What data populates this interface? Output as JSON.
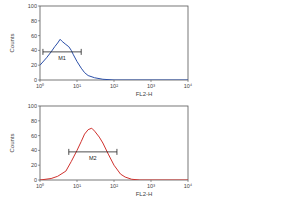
{
  "chart_data": [
    {
      "type": "line",
      "log": "x",
      "grid": false,
      "color": "#2b4fa8",
      "x_label": "FL2-H",
      "y_label": "Counts",
      "x": [
        1,
        1.5,
        2,
        2.5,
        3,
        3.5,
        4,
        5,
        6,
        7,
        8,
        10,
        13,
        16,
        20,
        30,
        50,
        100,
        1000,
        10000
      ],
      "series": [
        {
          "color": "#2b4fa8",
          "values": [
            20,
            30,
            38,
            45,
            50,
            55,
            52,
            48,
            45,
            40,
            34,
            25,
            16,
            10,
            6,
            3,
            1,
            0,
            0,
            0
          ]
        }
      ],
      "xlim": [
        1,
        10000
      ],
      "xticks": [
        {
          "value": 1,
          "label": "10⁰"
        },
        {
          "value": 10,
          "label": "10¹"
        },
        {
          "value": 100,
          "label": "10²"
        },
        {
          "value": 1000,
          "label": "10³"
        },
        {
          "value": 10000,
          "label": "10⁴"
        }
      ],
      "ylim": [
        0,
        100
      ],
      "yticks": [
        0,
        20,
        40,
        60,
        80,
        100
      ],
      "gate": {
        "label": "M1",
        "x": [
          1.2,
          13
        ],
        "y": 38
      }
    },
    {
      "type": "line",
      "log": "x",
      "grid": false,
      "color": "#d0312d",
      "x_label": "FL2-H",
      "y_label": "Counts",
      "x": [
        1,
        2,
        3,
        5,
        7,
        10,
        13,
        16,
        20,
        25,
        30,
        40,
        50,
        70,
        100,
        150,
        200,
        300,
        500,
        1000,
        10000
      ],
      "series": [
        {
          "color": "#d0312d",
          "values": [
            0,
            2,
            5,
            12,
            25,
            40,
            52,
            62,
            68,
            70,
            66,
            58,
            50,
            35,
            20,
            8,
            4,
            1,
            0,
            0,
            0
          ]
        }
      ],
      "xlim": [
        1,
        10000
      ],
      "xticks": [
        {
          "value": 1,
          "label": "10⁰"
        },
        {
          "value": 10,
          "label": "10¹"
        },
        {
          "value": 100,
          "label": "10²"
        },
        {
          "value": 1000,
          "label": "10³"
        },
        {
          "value": 10000,
          "label": "10⁴"
        }
      ],
      "ylim": [
        0,
        100
      ],
      "yticks": [
        0,
        20,
        40,
        60,
        80,
        100
      ],
      "gate": {
        "label": "M2",
        "x": [
          6,
          120
        ],
        "y": 38
      }
    }
  ]
}
